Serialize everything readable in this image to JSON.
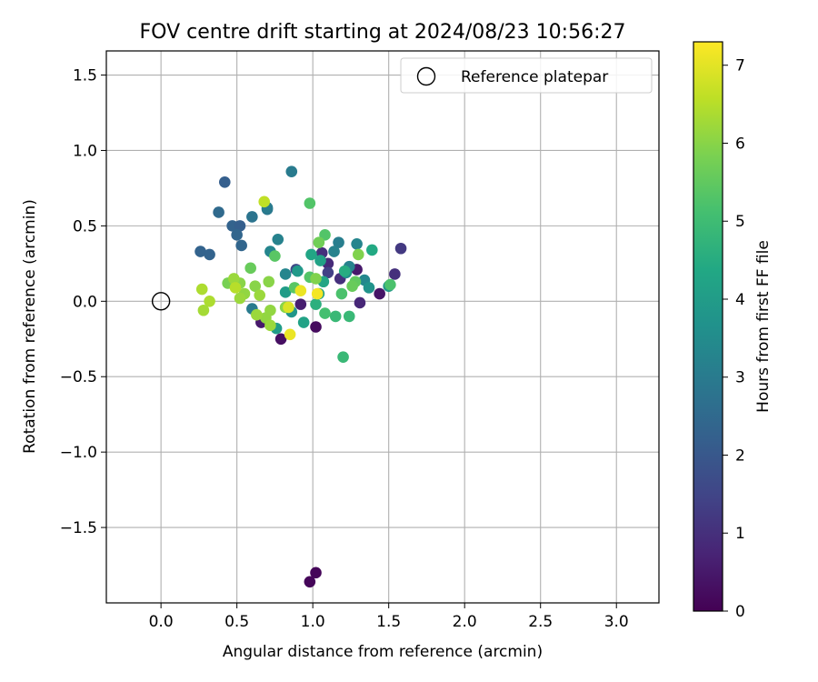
{
  "chart_data": {
    "type": "scatter",
    "title": "FOV centre drift starting at 2024/08/23 10:56:27",
    "xlabel": "Angular distance from reference (arcmin)",
    "ylabel": "Rotation from reference (arcmin)",
    "xlim": [
      -0.36,
      3.28
    ],
    "ylim": [
      -2.0,
      1.66
    ],
    "xticks": [
      0.0,
      0.5,
      1.0,
      1.5,
      2.0,
      2.5,
      3.0
    ],
    "xtick_labels": [
      "0.0",
      "0.5",
      "1.0",
      "1.5",
      "2.0",
      "2.5",
      "3.0"
    ],
    "yticks": [
      -1.5,
      -1.0,
      -0.5,
      0.0,
      0.5,
      1.0,
      1.5
    ],
    "ytick_labels": [
      "−1.5",
      "−1.0",
      "−0.5",
      "0.0",
      "0.5",
      "1.0",
      "1.5"
    ],
    "grid": true,
    "legend": {
      "position": "top-right",
      "entries": [
        "Reference platepar"
      ]
    },
    "reference_point": {
      "name": "Reference platepar",
      "x": 0.0,
      "y": 0.0
    },
    "colorbar": {
      "label": "Hours from first FF file",
      "min": 0,
      "max": 7.3,
      "ticks": [
        0,
        1,
        2,
        3,
        4,
        5,
        6,
        7
      ],
      "tick_labels": [
        "0",
        "1",
        "2",
        "3",
        "4",
        "5",
        "6",
        "7"
      ],
      "colormap": "viridis"
    },
    "points": [
      [
        1.02,
        -1.8,
        0.1
      ],
      [
        0.98,
        -1.86,
        0.1
      ],
      [
        1.02,
        -0.17,
        0.2
      ],
      [
        0.79,
        -0.25,
        0.3
      ],
      [
        0.66,
        -0.14,
        0.5
      ],
      [
        0.92,
        -0.02,
        0.6
      ],
      [
        1.44,
        0.05,
        0.4
      ],
      [
        1.31,
        -0.01,
        0.8
      ],
      [
        1.54,
        0.18,
        1.0
      ],
      [
        1.58,
        0.35,
        1.2
      ],
      [
        1.29,
        0.21,
        0.5
      ],
      [
        1.18,
        0.15,
        1.0
      ],
      [
        1.1,
        0.25,
        0.9
      ],
      [
        1.06,
        0.32,
        1.0
      ],
      [
        1.1,
        0.19,
        1.4
      ],
      [
        0.89,
        0.21,
        1.6
      ],
      [
        0.42,
        0.79,
        2.2
      ],
      [
        0.86,
        0.86,
        3.0
      ],
      [
        0.38,
        0.59,
        2.5
      ],
      [
        0.47,
        0.5,
        2.3
      ],
      [
        0.52,
        0.5,
        2.2
      ],
      [
        0.5,
        0.44,
        2.4
      ],
      [
        0.53,
        0.37,
        2.4
      ],
      [
        0.6,
        0.56,
        2.8
      ],
      [
        0.7,
        0.61,
        2.9
      ],
      [
        0.7,
        0.62,
        3.0
      ],
      [
        0.77,
        0.41,
        3.2
      ],
      [
        0.72,
        0.33,
        3.3
      ],
      [
        0.82,
        0.18,
        3.3
      ],
      [
        0.26,
        0.33,
        2.3
      ],
      [
        0.32,
        0.31,
        2.3
      ],
      [
        1.17,
        0.39,
        3.1
      ],
      [
        1.29,
        0.38,
        3.3
      ],
      [
        1.24,
        0.23,
        3.2
      ],
      [
        1.34,
        0.14,
        3.4
      ],
      [
        1.37,
        0.09,
        3.7
      ],
      [
        1.5,
        0.1,
        3.8
      ],
      [
        1.14,
        0.33,
        3.2
      ],
      [
        1.22,
        0.19,
        3.6
      ],
      [
        0.9,
        0.2,
        3.9
      ],
      [
        0.6,
        -0.05,
        3.0
      ],
      [
        0.76,
        -0.18,
        4.0
      ],
      [
        0.82,
        0.06,
        4.0
      ],
      [
        0.86,
        -0.07,
        3.8
      ],
      [
        0.94,
        -0.14,
        4.2
      ],
      [
        1.04,
        0.05,
        4.2
      ],
      [
        1.07,
        0.13,
        4.3
      ],
      [
        1.05,
        0.27,
        4.2
      ],
      [
        0.99,
        0.31,
        4.3
      ],
      [
        1.39,
        0.34,
        4.4
      ],
      [
        1.21,
        0.2,
        4.5
      ],
      [
        1.02,
        -0.02,
        4.6
      ],
      [
        1.15,
        -0.1,
        4.9
      ],
      [
        1.24,
        -0.1,
        4.9
      ],
      [
        1.2,
        -0.37,
        4.9
      ],
      [
        1.08,
        -0.08,
        5.1
      ],
      [
        1.19,
        0.05,
        5.2
      ],
      [
        1.51,
        0.11,
        5.2
      ],
      [
        0.98,
        0.65,
        5.3
      ],
      [
        1.08,
        0.44,
        5.3
      ],
      [
        0.98,
        0.16,
        5.3
      ],
      [
        0.88,
        0.09,
        5.4
      ],
      [
        1.28,
        0.13,
        5.5
      ],
      [
        1.26,
        0.1,
        5.6
      ],
      [
        0.75,
        0.3,
        5.4
      ],
      [
        0.59,
        0.22,
        5.6
      ],
      [
        0.44,
        0.12,
        5.8
      ],
      [
        1.04,
        0.39,
        5.7
      ],
      [
        1.02,
        0.15,
        5.9
      ],
      [
        1.3,
        0.31,
        5.9
      ],
      [
        0.71,
        0.13,
        6.0
      ],
      [
        0.82,
        -0.04,
        6.0
      ],
      [
        0.69,
        -0.11,
        6.1
      ],
      [
        0.72,
        -0.06,
        6.1
      ],
      [
        0.52,
        0.12,
        6.0
      ],
      [
        0.55,
        0.05,
        6.1
      ],
      [
        0.52,
        0.02,
        6.2
      ],
      [
        0.62,
        0.1,
        6.0
      ],
      [
        0.65,
        0.04,
        6.2
      ],
      [
        0.72,
        -0.16,
        6.2
      ],
      [
        0.63,
        -0.09,
        6.2
      ],
      [
        0.48,
        0.15,
        6.2
      ],
      [
        0.68,
        0.66,
        6.6
      ],
      [
        0.27,
        0.08,
        6.4
      ],
      [
        0.32,
        0.0,
        6.4
      ],
      [
        0.28,
        -0.06,
        6.3
      ],
      [
        0.49,
        0.09,
        6.5
      ],
      [
        0.84,
        -0.04,
        6.9
      ],
      [
        0.85,
        -0.22,
        7.1
      ],
      [
        0.92,
        0.07,
        7.1
      ],
      [
        1.03,
        0.05,
        7.2
      ]
    ]
  }
}
